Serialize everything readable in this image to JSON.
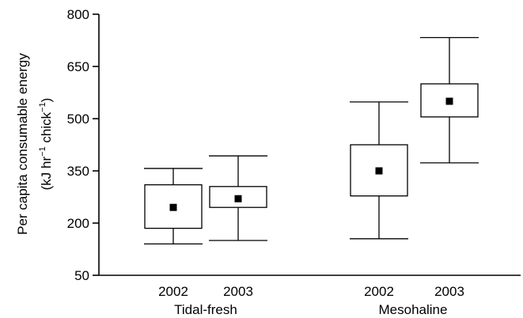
{
  "chart_data": {
    "type": "box",
    "ylabel_line1": "Per capita consumable energy",
    "ylabel_line2": {
      "open": "(kJ hr",
      "exp1": "−1",
      "mid": " chick",
      "exp2": "−1",
      "close": ")"
    },
    "ylim": [
      50,
      800
    ],
    "yticks": [
      50,
      200,
      350,
      500,
      650,
      800
    ],
    "groups": [
      {
        "label": "Tidal-fresh",
        "boxes": [
          {
            "year": "2002",
            "min": 140,
            "q1": 185,
            "median": 245,
            "q3": 310,
            "max": 357
          },
          {
            "year": "2003",
            "min": 150,
            "q1": 245,
            "median": 270,
            "q3": 305,
            "max": 393
          }
        ]
      },
      {
        "label": "Mesohaline",
        "boxes": [
          {
            "year": "2002",
            "min": 155,
            "q1": 278,
            "median": 350,
            "q3": 425,
            "max": 548
          },
          {
            "year": "2003",
            "min": 373,
            "q1": 505,
            "median": 550,
            "q3": 600,
            "max": 733
          }
        ]
      }
    ],
    "colors": {
      "box_fill": "#ffffff",
      "stroke": "#000000",
      "marker": "#000000"
    },
    "grid": false
  }
}
